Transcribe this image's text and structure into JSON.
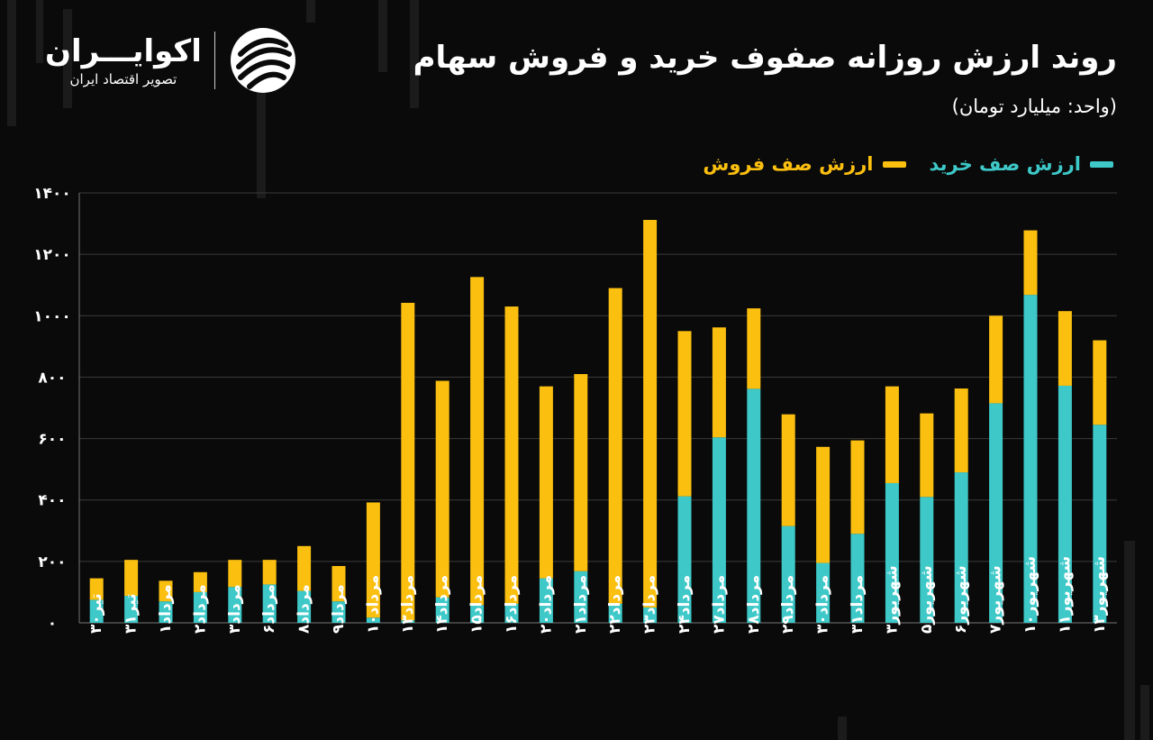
{
  "title": "روند ارزش روزانه صفوف خرید و فروش سهام",
  "unit": "(واحد: میلیارد تومان)",
  "logo": {
    "name": "اکوایـــران",
    "tagline": "تصویر اقتصاد ایران",
    "icon": "ecoiran-swirl-icon"
  },
  "colors": {
    "buy": "#3ec8c8",
    "sell": "#fbbf0f",
    "background": "#0a0a0a",
    "grid": "#3a3a3a",
    "text": "#ffffff"
  },
  "chart_data": {
    "type": "bar",
    "stacked": true,
    "legend_position": "top-right",
    "grid": true,
    "ylim": [
      0,
      1400
    ],
    "yticks": [
      "۰",
      "۲۰۰",
      "۴۰۰",
      "۶۰۰",
      "۸۰۰",
      "۱۰۰۰",
      "۱۲۰۰",
      "۱۴۰۰"
    ],
    "ytick_values": [
      0,
      200,
      400,
      600,
      800,
      1000,
      1200,
      1400
    ],
    "categories": [
      "تیر۳۰",
      "تیر۳۱",
      "مرداد۱",
      "مرداد۲",
      "مرداد۳",
      "مرداد۶",
      "مرداد۸",
      "مرداد۹",
      "مرداد۱۰",
      "مرداد۱۳",
      "مرداد۱۴",
      "مرداد۱۵",
      "مرداد۱۶",
      "مرداد۲۰",
      "مرداد۲۱",
      "مرداد۲۲",
      "مرداد۲۳",
      "مرداد۲۴",
      "مرداد۲۷",
      "مرداد۲۸",
      "مرداد۲۹",
      "مرداد۳۰",
      "مرداد۳۱",
      "شهریور۳",
      "شهریور۵",
      "شهریور۶",
      "شهریور۷",
      "شهریور۱۰",
      "شهریور۱۱",
      "شهریور۱۳"
    ],
    "series": [
      {
        "name": "ارزش صف خرید",
        "color": "#3ec8c8",
        "values": [
          75,
          88,
          70,
          100,
          117,
          125,
          104,
          70,
          17,
          8,
          83,
          58,
          62,
          145,
          168,
          62,
          50,
          412,
          604,
          762,
          315,
          195,
          290,
          455,
          410,
          490,
          715,
          1068,
          772,
          645
        ]
      },
      {
        "name": "ارزش صف فروش",
        "color": "#fbbf0f",
        "values": [
          70,
          117,
          67,
          65,
          88,
          80,
          146,
          115,
          375,
          1034,
          705,
          1068,
          968,
          625,
          642,
          1028,
          1262,
          538,
          358,
          262,
          364,
          378,
          304,
          315,
          272,
          273,
          285,
          210,
          243,
          275
        ]
      }
    ]
  }
}
